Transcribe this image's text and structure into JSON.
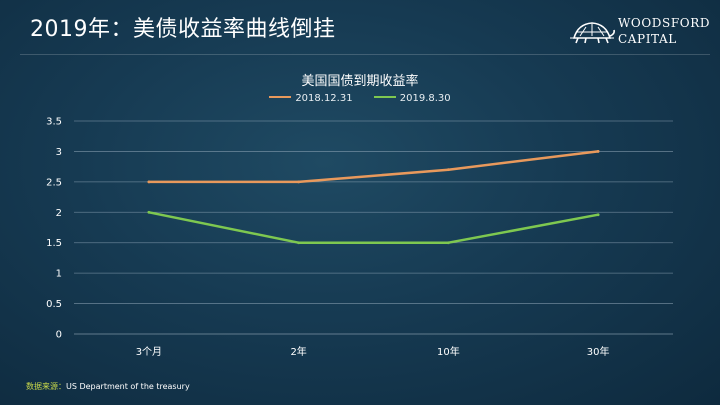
{
  "header": {
    "title": "2019年：美债收益率曲线倒挂",
    "logo_line1": "WOODSFORD",
    "logo_line2": "CAPITAL"
  },
  "source": {
    "label": "数据来源：",
    "text": "US  Department   of the treasury"
  },
  "colors": {
    "series_2018": "#e8995c",
    "series_2019": "#7ec850",
    "gridline": "#9fb3c2",
    "source_label": "#c8d84a"
  },
  "chart_data": {
    "type": "line",
    "title": "美国国债到期收益率",
    "xlabel": "",
    "ylabel": "",
    "categories": [
      "3个月",
      "2年",
      "10年",
      "30年"
    ],
    "series": [
      {
        "name": "2018.12.31",
        "values": [
          2.5,
          2.5,
          2.7,
          3.0
        ]
      },
      {
        "name": "2019.8.30",
        "values": [
          2.0,
          1.5,
          1.5,
          1.96
        ]
      }
    ],
    "ylim": [
      0,
      3.5
    ],
    "yticks": [
      "0",
      "0.5",
      "1",
      "1.5",
      "2",
      "2.5",
      "3",
      "3.5"
    ],
    "grid": true,
    "legend": "top-center"
  }
}
